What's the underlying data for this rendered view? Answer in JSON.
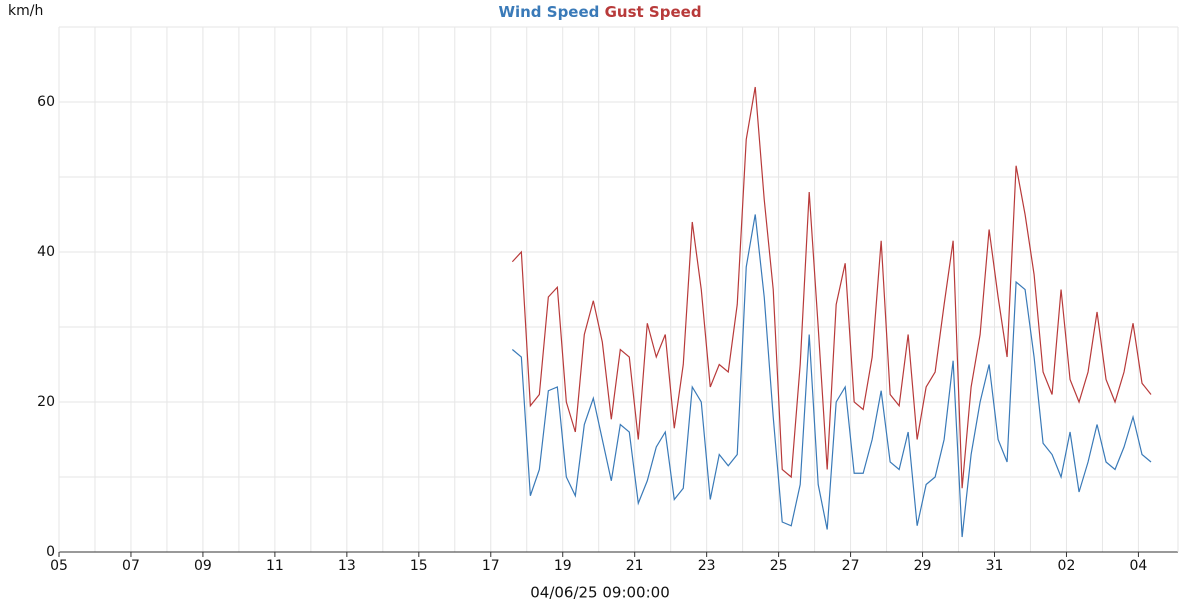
{
  "chart_data": {
    "type": "line",
    "y_label": "km/h",
    "x_label": "04/06/25 09:00:00",
    "x": [
      12.6,
      12.85,
      13.1,
      13.35,
      13.6,
      13.85,
      14.1,
      14.35,
      14.6,
      14.85,
      15.1,
      15.35,
      15.6,
      15.85,
      16.1,
      16.35,
      16.6,
      16.85,
      17.1,
      17.35,
      17.6,
      17.85,
      18.1,
      18.35,
      18.6,
      18.85,
      19.1,
      19.35,
      19.6,
      19.85,
      20.1,
      20.35,
      20.6,
      20.85,
      21.1,
      21.35,
      21.6,
      21.85,
      22.1,
      22.35,
      22.6,
      22.85,
      23.1,
      23.35,
      23.6,
      23.85,
      24.1,
      24.35,
      24.6,
      24.85,
      25.1,
      25.35,
      25.6,
      25.85,
      26.1,
      26.35,
      26.6,
      26.85,
      27.1,
      27.35,
      27.6,
      27.85,
      28.1,
      28.35,
      28.6,
      28.85,
      29.1,
      29.35,
      29.6,
      29.85,
      30.1,
      30.35
    ],
    "series": [
      {
        "name": "Wind Speed",
        "color": "#3a7ab8",
        "values": [
          27,
          26,
          7.5,
          11,
          21.5,
          22,
          10,
          7.5,
          17,
          20.5,
          15,
          9.5,
          17,
          16,
          6.5,
          9.5,
          14,
          16,
          7,
          8.5,
          22,
          20,
          7,
          13,
          11.5,
          13,
          38,
          45,
          34,
          18,
          4,
          3.5,
          9,
          29,
          9,
          3,
          20,
          22,
          10.5,
          10.5,
          15,
          21.5,
          12,
          11,
          16,
          3.5,
          9,
          10,
          15,
          25.5,
          2,
          13,
          20,
          25,
          15,
          12,
          36,
          35,
          26,
          14.5,
          13,
          10,
          16,
          8,
          12,
          17,
          12,
          11,
          14,
          18,
          13,
          12
        ]
      },
      {
        "name": "Gust Speed",
        "color": "#b83a3a",
        "values": [
          38.7,
          40,
          19.5,
          21,
          34,
          35.3,
          20,
          16,
          29,
          33.5,
          28,
          17.7,
          27,
          26,
          15,
          30.5,
          26,
          29,
          16.5,
          25,
          44,
          35,
          22,
          25,
          24,
          33,
          55,
          62,
          47,
          35,
          11,
          10,
          25,
          48,
          30,
          11,
          33,
          38.5,
          20,
          19,
          26,
          41.5,
          21,
          19.5,
          29,
          15,
          22,
          24,
          33,
          41.5,
          8.5,
          22,
          29,
          43,
          34,
          26,
          51.5,
          45,
          37,
          24,
          21,
          35,
          23,
          20,
          24,
          32,
          23,
          20,
          24,
          30.5,
          22.5,
          21
        ]
      }
    ],
    "xlim": [
      0,
      31.1
    ],
    "xticks": [
      {
        "value": 0,
        "label": "05"
      },
      {
        "value": 2,
        "label": "07"
      },
      {
        "value": 4,
        "label": "09"
      },
      {
        "value": 6,
        "label": "11"
      },
      {
        "value": 8,
        "label": "13"
      },
      {
        "value": 10,
        "label": "15"
      },
      {
        "value": 12,
        "label": "17"
      },
      {
        "value": 14,
        "label": "19"
      },
      {
        "value": 16,
        "label": "21"
      },
      {
        "value": 18,
        "label": "23"
      },
      {
        "value": 20,
        "label": "25"
      },
      {
        "value": 22,
        "label": "27"
      },
      {
        "value": 24,
        "label": "29"
      },
      {
        "value": 26,
        "label": "31"
      },
      {
        "value": 28,
        "label": "02"
      },
      {
        "value": 30,
        "label": "04"
      }
    ],
    "x_minor_ticks": [
      1,
      3,
      5,
      7,
      9,
      11,
      13,
      15,
      17,
      19,
      21,
      23,
      25,
      27,
      29
    ],
    "ylim": [
      0,
      70
    ],
    "yticks": [
      0,
      20,
      40,
      60
    ],
    "y_minor_ticks": [
      10,
      30,
      50,
      70
    ],
    "grid": true
  }
}
